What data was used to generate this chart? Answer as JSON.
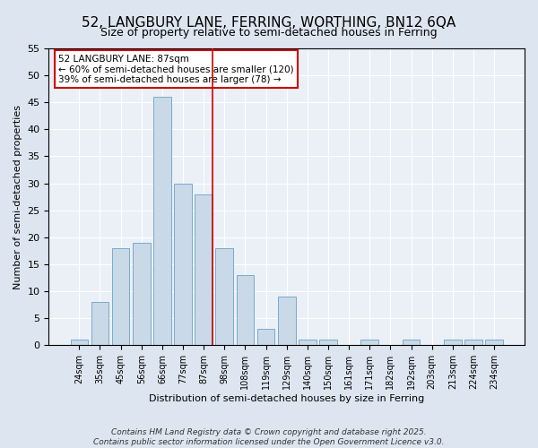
{
  "title": "52, LANGBURY LANE, FERRING, WORTHING, BN12 6QA",
  "subtitle": "Size of property relative to semi-detached houses in Ferring",
  "xlabel": "Distribution of semi-detached houses by size in Ferring",
  "ylabel": "Number of semi-detached properties",
  "categories": [
    "24sqm",
    "35sqm",
    "45sqm",
    "56sqm",
    "66sqm",
    "77sqm",
    "87sqm",
    "98sqm",
    "108sqm",
    "119sqm",
    "129sqm",
    "140sqm",
    "150sqm",
    "161sqm",
    "171sqm",
    "182sqm",
    "192sqm",
    "203sqm",
    "213sqm",
    "224sqm",
    "234sqm"
  ],
  "values": [
    1,
    8,
    18,
    19,
    46,
    30,
    28,
    18,
    13,
    3,
    9,
    1,
    1,
    0,
    1,
    0,
    1,
    0,
    1,
    1,
    1
  ],
  "bar_color": "#c9d9e8",
  "bar_edge_color": "#7aaacc",
  "red_line_index": 6,
  "annotation_text": "52 LANGBURY LANE: 87sqm\n← 60% of semi-detached houses are smaller (120)\n39% of semi-detached houses are larger (78) →",
  "annotation_box_color": "white",
  "annotation_box_edge_color": "#cc0000",
  "ylim": [
    0,
    55
  ],
  "yticks": [
    0,
    5,
    10,
    15,
    20,
    25,
    30,
    35,
    40,
    45,
    50,
    55
  ],
  "background_color": "#dde6f0",
  "plot_background_color": "#eaf0f6",
  "footer_text": "Contains HM Land Registry data © Crown copyright and database right 2025.\nContains public sector information licensed under the Open Government Licence v3.0.",
  "title_fontsize": 11,
  "footer_fontsize": 6.5
}
